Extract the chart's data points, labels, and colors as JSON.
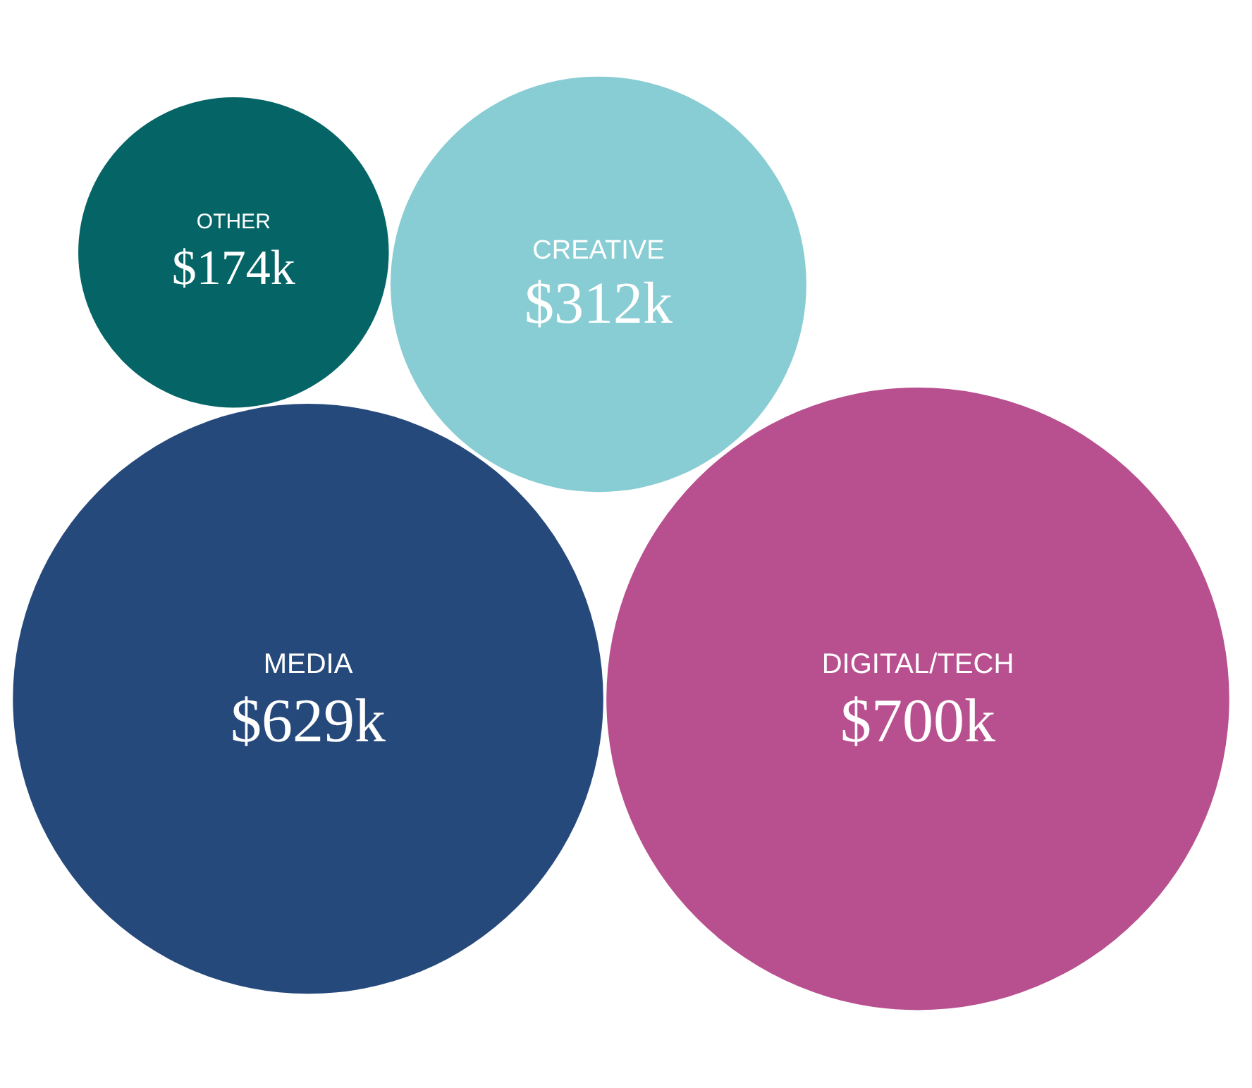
{
  "chart_data": {
    "type": "other",
    "categories": [
      "MEDIA",
      "DIGITAL/TECH",
      "CREATIVE",
      "OTHER"
    ],
    "values": [
      629,
      700,
      312,
      174
    ],
    "value_labels": [
      "$629k",
      "$700k",
      "$312k",
      "$174k"
    ],
    "colors": [
      "#26497b",
      "#b84f8f",
      "#88cdd3",
      "#056466"
    ]
  }
}
